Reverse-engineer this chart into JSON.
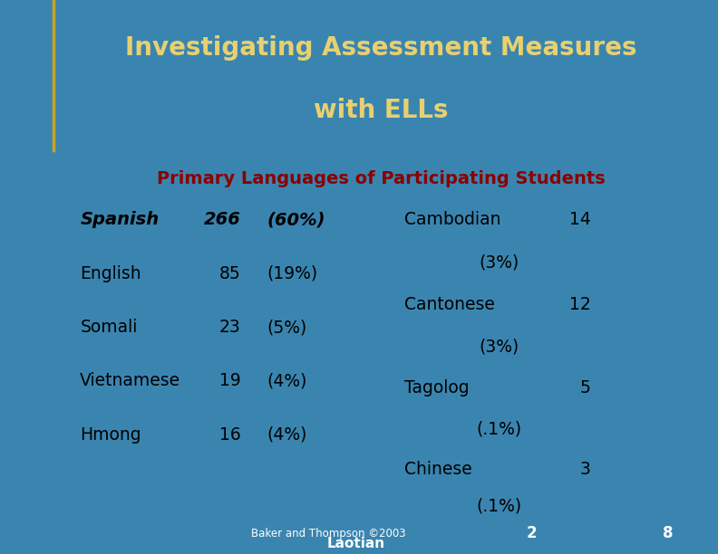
{
  "title_line1": "Investigating Assessment Measures",
  "title_line2": "with ELLs",
  "subtitle": "Primary Languages of Participating Students",
  "title_bg_color": "#1A6496",
  "title_text_color": "#E8D070",
  "subtitle_text_color": "#8B0000",
  "slide_bg_color": "#3A85B0",
  "white_box_color": "#FFFFFF",
  "footer_bg_color": "#2A6A90",
  "gold_color": "#C8A428",
  "left_col": [
    [
      "Spanish",
      "266",
      "(60%)",
      true
    ],
    [
      "English",
      "85",
      "(19%)",
      false
    ],
    [
      "Somali",
      "23",
      "(5%)",
      false
    ],
    [
      "Vietnamese",
      "19",
      "(4%)",
      false
    ],
    [
      "Hmong",
      "16",
      "(4%)",
      false
    ]
  ],
  "right_entries": [
    {
      "name": "Cambodian",
      "num": "14",
      "pct": "(3%)"
    },
    {
      "name": "Cantonese",
      "num": "12",
      "pct": "(3%)"
    },
    {
      "name": "Tagolog",
      "num": "5",
      "pct": "(.1%)"
    },
    {
      "name": "Chinese",
      "num": "3",
      "pct": "(.1%)"
    }
  ],
  "footer_left_text": "Baker and Thompson ©2003",
  "footer_mid_text": "Laotian",
  "footer_num": "2",
  "footer_page": "8"
}
